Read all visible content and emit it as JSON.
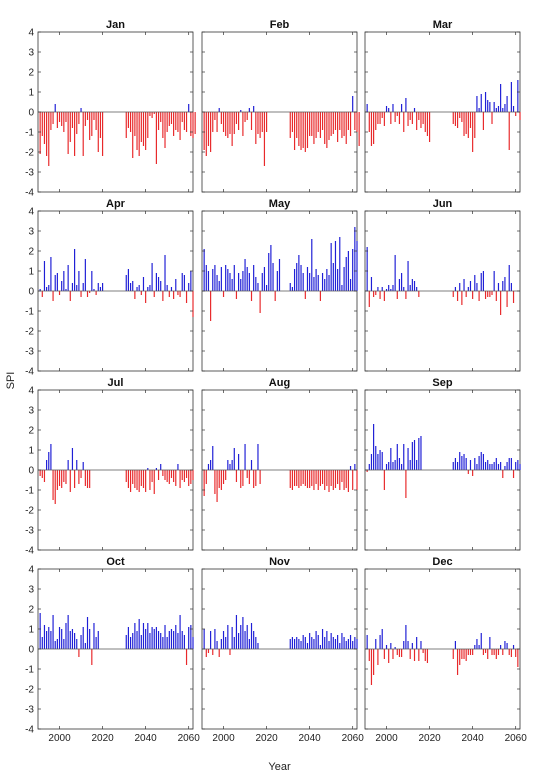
{
  "colors": {
    "positive": "#1f1fd6",
    "negative": "#e8292b",
    "axes": "#333333"
  },
  "chart_data": {
    "type": "bar",
    "xlabel": "Year",
    "ylabel": "SPI",
    "ylim": [
      -4,
      4
    ],
    "yticks": [
      -4,
      -3,
      -2,
      -1,
      0,
      1,
      2,
      3,
      4
    ],
    "xlim": [
      1990,
      2062
    ],
    "xticks": [
      2000,
      2020,
      2040,
      2060
    ],
    "grid": false,
    "panels": [
      {
        "title": "Jan",
        "segments": [
          {
            "start": 1991,
            "values": [
              -2.1,
              -1.2,
              -1.6,
              -2.2,
              -2.7,
              -0.9,
              -0.6,
              0.4,
              -0.8,
              -0.5,
              -0.7,
              -1.0,
              -0.5,
              -2.1,
              -1.5,
              -0.8,
              -2.2,
              -1.1,
              -0.6,
              0.2,
              -2.2,
              -0.7,
              -0.4,
              -1.4,
              -1.2,
              -0.4,
              -0.9,
              -2.0,
              -1.3,
              -2.2
            ]
          },
          {
            "start": 2031,
            "values": [
              -1.3,
              -0.8,
              -1.0,
              -2.3,
              -1.2,
              -1.9,
              -2.2,
              -1.5,
              -1.7,
              -1.9,
              -1.3,
              -0.2,
              -0.3,
              -0.1,
              -2.6,
              -0.9,
              -0.5,
              -1.3,
              -1.8,
              -1.0,
              -0.7,
              -0.6,
              -1.2,
              -0.9,
              -1.0,
              -1.4,
              -0.5,
              -0.9,
              -1.0,
              0.4,
              -1.2,
              -1.3,
              -1.1
            ]
          }
        ]
      },
      {
        "title": "Feb",
        "segments": [
          {
            "start": 1991,
            "values": [
              -1.9,
              -2.2,
              -1.7,
              -2.0,
              -1.0,
              -0.4,
              -1.0,
              0.2,
              -0.6,
              -1.0,
              -1.2,
              -1.3,
              -1.1,
              -1.7,
              -1.1,
              -0.6,
              -0.9,
              0.1,
              -1.2,
              -0.5,
              -0.4,
              0.2,
              -0.9,
              0.3,
              -1.6,
              -1.1,
              -1.3,
              -1.0,
              -2.7,
              -1.0
            ]
          },
          {
            "start": 2031,
            "values": [
              -1.3,
              -1.0,
              -1.9,
              -1.3,
              -1.7,
              -1.9,
              -1.8,
              -2.0,
              -1.8,
              -1.2,
              -1.2,
              -1.6,
              -1.3,
              -1.0,
              -1.3,
              -0.9,
              -1.6,
              -1.8,
              -1.4,
              -1.2,
              -1.1,
              -0.9,
              -1.5,
              -0.9,
              -1.3,
              -1.2,
              -1.6,
              -0.9,
              -1.2,
              0.8,
              -0.9,
              -1.0,
              -1.7
            ]
          }
        ]
      },
      {
        "title": "Mar",
        "segments": [
          {
            "start": 1991,
            "values": [
              0.4,
              -1.0,
              -1.7,
              -1.6,
              -0.9,
              -0.6,
              -0.6,
              -0.3,
              -0.7,
              0.3,
              0.2,
              -0.6,
              0.4,
              -0.5,
              -0.2,
              -0.6,
              0.4,
              -1.0,
              0.7,
              -0.7,
              -0.4,
              -0.6,
              0.2,
              -0.9,
              -0.4,
              -0.8,
              -0.6,
              -1.0,
              -1.2,
              -1.5
            ]
          },
          {
            "start": 2031,
            "values": [
              -0.6,
              -0.7,
              -0.8,
              -0.3,
              -0.5,
              -1.2,
              -1.1,
              -1.3,
              -0.8,
              -2.0,
              -1.3,
              0.8,
              0.2,
              0.9,
              -0.9,
              1.0,
              0.6,
              0.5,
              -0.6,
              0.5,
              0.2,
              0.3,
              1.4,
              0.2,
              0.4,
              0.8,
              -1.9,
              1.5,
              0.3,
              -0.2,
              1.6,
              -0.4
            ]
          }
        ]
      },
      {
        "title": "Apr",
        "segments": [
          {
            "start": 1991,
            "values": [
              0.1,
              -0.3,
              1.5,
              0.2,
              0.3,
              1.7,
              -0.5,
              0.8,
              0.9,
              -0.2,
              0.5,
              1.0,
              0.1,
              1.3,
              -0.5,
              0.4,
              2.1,
              0.3,
              1.0,
              -0.3,
              0.4,
              1.6,
              -0.3,
              -0.1,
              1.0,
              0.1,
              -0.2,
              0.4,
              0.2,
              0.4
            ]
          },
          {
            "start": 2031,
            "values": [
              0.8,
              1.1,
              0.4,
              0.5,
              -0.4,
              0.2,
              0.3,
              -0.2,
              0.7,
              -0.6,
              0.2,
              0.3,
              1.4,
              -0.3,
              0.9,
              0.7,
              0.5,
              -0.5,
              1.8,
              0.3,
              -0.3,
              0.2,
              -0.4,
              0.6,
              -0.2,
              -0.3,
              0.9,
              0.8,
              -0.6,
              0.4,
              1.0,
              -1.3
            ]
          }
        ]
      },
      {
        "title": "May",
        "segments": [
          {
            "start": 1991,
            "values": [
              2.1,
              1.3,
              1.0,
              -1.5,
              1.1,
              1.3,
              0.8,
              0.5,
              1.2,
              -0.3,
              1.3,
              1.1,
              0.9,
              0.6,
              1.3,
              -0.4,
              0.9,
              0.6,
              1.0,
              1.6,
              1.2,
              0.9,
              -0.5,
              1.3,
              0.7,
              0.4,
              -1.1,
              0.9,
              1.2,
              0.3,
              1.9,
              2.3,
              1.4,
              -0.5,
              1.0,
              1.6
            ]
          },
          {
            "start": 2031,
            "values": [
              0.4,
              0.2,
              1.1,
              1.4,
              1.8,
              1.3,
              0.9,
              -0.4,
              1.2,
              0.9,
              2.6,
              0.7,
              1.1,
              0.8,
              -0.5,
              0.9,
              0.6,
              1.1,
              0.8,
              2.4,
              1.4,
              2.5,
              1.1,
              2.7,
              0.3,
              1.2,
              1.7,
              2.0,
              0.6,
              2.1,
              3.2,
              2.5
            ]
          }
        ]
      },
      {
        "title": "Jun",
        "segments": [
          {
            "start": 1991,
            "values": [
              2.2,
              -0.8,
              0.7,
              -0.3,
              -0.2,
              0.2,
              -0.4,
              0.2,
              -0.5,
              0.1,
              0.3,
              0.1,
              0.3,
              1.8,
              -0.4,
              0.6,
              0.9,
              0.2,
              -0.4,
              1.5,
              0.3,
              0.6,
              0.5,
              0.2,
              -0.3
            ]
          },
          {
            "start": 2031,
            "values": [
              -0.3,
              0.2,
              -0.5,
              0.4,
              -0.7,
              0.6,
              -0.3,
              0.2,
              0.5,
              -0.4,
              0.8,
              0.4,
              -0.5,
              0.9,
              1.0,
              -0.4,
              -0.3,
              -0.3,
              -0.2,
              1.0,
              -0.5,
              0.4,
              -1.2,
              0.5,
              0.7,
              -0.8,
              1.3,
              0.4,
              -0.6
            ]
          }
        ]
      },
      {
        "title": "Jul",
        "segments": [
          {
            "start": 1991,
            "values": [
              -0.3,
              -0.4,
              -0.6,
              0.5,
              0.9,
              1.3,
              -1.5,
              -1.7,
              -1.0,
              -0.8,
              -0.9,
              -0.6,
              -0.7,
              0.5,
              -1.1,
              1.1,
              -0.9,
              0.5,
              -0.7,
              -0.4,
              0.4,
              -0.8,
              -0.9,
              -0.9
            ]
          },
          {
            "start": 2031,
            "values": [
              -0.6,
              -0.9,
              -1.1,
              -0.7,
              -0.9,
              -1.0,
              -1.1,
              -0.8,
              -0.9,
              -1.1,
              0.1,
              -1.0,
              -0.6,
              -1.2,
              0.1,
              -0.5,
              0.3,
              -0.3,
              -0.5,
              -0.6,
              -0.7,
              -0.4,
              -0.6,
              -0.8,
              0.3,
              -0.9,
              -0.5,
              -0.6,
              -0.4,
              -0.8,
              -0.7,
              -0.5
            ]
          }
        ]
      },
      {
        "title": "Aug",
        "segments": [
          {
            "start": 1991,
            "values": [
              -1.3,
              -0.7,
              0.3,
              0.5,
              1.2,
              -1.2,
              -1.6,
              -0.9,
              -1.0,
              -0.7,
              -0.5,
              0.5,
              0.3,
              0.5,
              1.1,
              -0.6,
              0.8,
              -0.9,
              -0.8,
              1.3,
              -0.4,
              -0.7,
              0.5,
              -0.9,
              -0.8,
              1.3,
              -0.7
            ]
          },
          {
            "start": 2031,
            "values": [
              -0.9,
              -1.0,
              -0.8,
              -0.8,
              -0.9,
              -0.8,
              -0.7,
              -0.8,
              -0.9,
              -0.9,
              -0.8,
              -1.0,
              -0.7,
              -1.0,
              -0.8,
              -0.7,
              -1.0,
              -0.8,
              -1.1,
              -0.8,
              -1.0,
              -0.9,
              -0.7,
              -1.0,
              -0.6,
              -1.0,
              -0.9,
              -1.1,
              0.2,
              -1.0,
              0.3,
              -1.0
            ]
          }
        ]
      },
      {
        "title": "Sep",
        "segments": [
          {
            "start": 1991,
            "values": [
              -0.1,
              0.3,
              0.8,
              2.3,
              1.2,
              0.8,
              1.0,
              0.9,
              -1.0,
              0.3,
              0.4,
              1.1,
              0.4,
              0.5,
              1.3,
              0.6,
              0.3,
              1.3,
              -1.4,
              1.1,
              0.5,
              1.4,
              1.5,
              0.5,
              1.6,
              1.7
            ]
          },
          {
            "start": 2031,
            "values": [
              0.4,
              0.6,
              0.4,
              0.9,
              0.7,
              0.8,
              0.6,
              -0.2,
              0.5,
              -0.3,
              0.6,
              0.3,
              0.7,
              0.9,
              0.8,
              0.4,
              0.5,
              0.3,
              0.3,
              0.4,
              0.6,
              0.3,
              0.4,
              -0.4,
              0.2,
              0.4,
              0.6,
              0.6,
              -0.4,
              0.4,
              0.5,
              0.3
            ]
          }
        ]
      },
      {
        "title": "Oct",
        "segments": [
          {
            "start": 1991,
            "values": [
              1.8,
              0.6,
              1.2,
              0.9,
              1.1,
              0.9,
              1.7,
              0.4,
              0.5,
              1.1,
              1.0,
              0.5,
              1.3,
              1.7,
              0.9,
              1.0,
              0.8,
              0.5,
              -0.4,
              0.7,
              1.1,
              0.3,
              1.6,
              1.0,
              -0.8,
              1.3,
              0.6,
              0.9
            ]
          },
          {
            "start": 2031,
            "values": [
              0.7,
              1.1,
              0.6,
              0.8,
              1.3,
              0.9,
              1.5,
              0.7,
              1.3,
              1.0,
              1.3,
              0.8,
              1.1,
              1.0,
              1.1,
              0.9,
              0.8,
              0.6,
              1.2,
              0.6,
              0.9,
              1.0,
              0.9,
              1.2,
              0.8,
              1.7,
              0.9,
              0.7,
              -0.8,
              1.1,
              1.2,
              0.6
            ]
          }
        ]
      },
      {
        "title": "Nov",
        "segments": [
          {
            "start": 1991,
            "values": [
              1.0,
              -0.4,
              -0.2,
              0.9,
              -0.3,
              1.0,
              0.4,
              -0.4,
              0.5,
              0.9,
              0.6,
              1.2,
              -0.3,
              1.1,
              0.6,
              1.7,
              0.8,
              1.2,
              1.6,
              0.9,
              1.2,
              0.5,
              1.3,
              0.9,
              0.6,
              0.3
            ]
          },
          {
            "start": 2031,
            "values": [
              0.5,
              0.6,
              0.5,
              0.6,
              0.5,
              0.4,
              0.7,
              0.6,
              0.3,
              0.8,
              0.6,
              0.5,
              0.9,
              0.7,
              0.2,
              1.0,
              0.6,
              0.9,
              0.4,
              0.8,
              0.6,
              0.5,
              0.7,
              0.3,
              0.8,
              0.6,
              0.4,
              0.5,
              0.7,
              0.4,
              0.6,
              0.5
            ]
          }
        ]
      },
      {
        "title": "Dec",
        "segments": [
          {
            "start": 1991,
            "values": [
              0.7,
              -0.6,
              -1.8,
              -1.3,
              0.5,
              -0.8,
              0.7,
              1.0,
              -0.5,
              0.2,
              -0.7,
              0.3,
              -0.5,
              0.1,
              -0.3,
              -0.4,
              -0.4,
              0.4,
              1.2,
              0.4,
              -0.5,
              0.3,
              -0.6,
              0.6,
              -0.6,
              0.4,
              -0.2,
              -0.6,
              -0.7
            ]
          },
          {
            "start": 2031,
            "values": [
              -0.5,
              0.4,
              -1.3,
              -0.8,
              -0.5,
              -0.5,
              -0.6,
              -0.3,
              -0.3,
              -0.3,
              0.2,
              0.5,
              0.2,
              0.8,
              -0.3,
              -0.2,
              -0.5,
              0.6,
              -0.3,
              -0.3,
              -0.5,
              -0.3,
              0.2,
              -0.3,
              0.4,
              0.3,
              -0.3,
              -0.4,
              0.2,
              -0.4,
              -0.9
            ]
          }
        ]
      }
    ]
  }
}
